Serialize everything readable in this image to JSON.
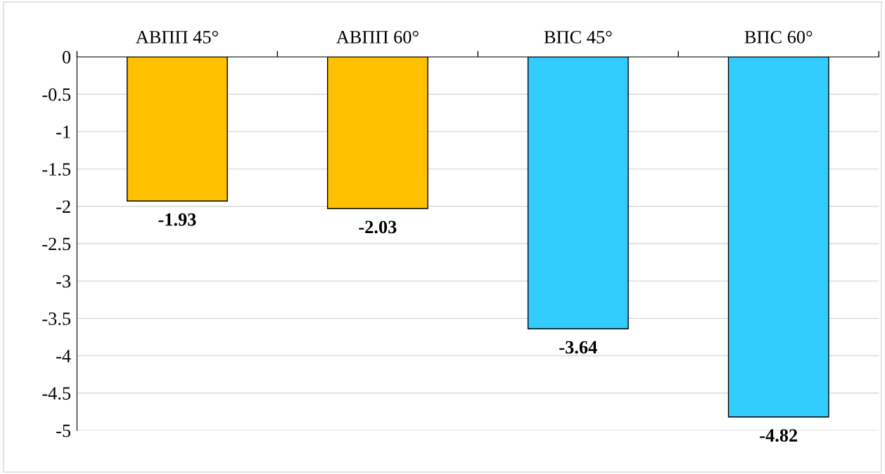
{
  "chart_data": {
    "type": "bar",
    "categories": [
      "АВПП 45°",
      "АВПП 60°",
      "ВПС 45°",
      "ВПС 60°"
    ],
    "values": [
      -1.93,
      -2.03,
      -3.64,
      -4.82
    ],
    "colors": [
      "#ffc000",
      "#ffc000",
      "#33ccff",
      "#33ccff"
    ],
    "ylim": [
      -5,
      0
    ],
    "yticks": [
      0,
      -0.5,
      -1,
      -1.5,
      -2,
      -2.5,
      -3,
      -3.5,
      -4,
      -4.5,
      -5
    ],
    "grid": "y",
    "data_labels": true
  }
}
